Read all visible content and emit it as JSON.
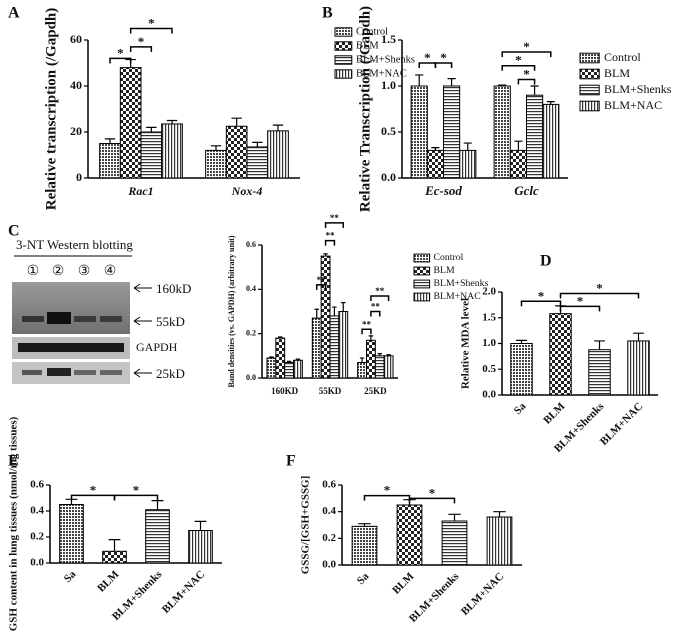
{
  "chart_data": [
    {
      "type": "grouped_bar",
      "label": "A",
      "ylabel": "Relative transcription (/Gapdh)",
      "categories": [
        "Rac1",
        "Nox-4"
      ],
      "series": [
        {
          "name": "Control",
          "color": "#444444",
          "values": [
            15,
            12
          ],
          "errors": [
            2,
            2
          ]
        },
        {
          "name": "BLM",
          "color": "#222222",
          "values": [
            48,
            22.5
          ],
          "errors": [
            3.5,
            3.5
          ]
        },
        {
          "name": "BLM+Shenks",
          "color": "#333333",
          "values": [
            20,
            13.5
          ],
          "errors": [
            2,
            2
          ]
        },
        {
          "name": "BLM+NAC",
          "color": "#333333",
          "values": [
            23.5,
            20.5
          ],
          "errors": [
            1.5,
            2.5
          ]
        }
      ],
      "ylim": [
        0,
        60
      ],
      "yticks": [
        0,
        20,
        40,
        60
      ],
      "legend": "right",
      "annotations": [
        "*",
        "*",
        "*"
      ]
    },
    {
      "type": "grouped_bar",
      "label": "B",
      "ylabel": "Relative Transcription (/Gapdh)",
      "categories": [
        "Ec-sod",
        "Gclc"
      ],
      "series": [
        {
          "name": "Control",
          "color": "#444444",
          "values": [
            1.0,
            1.0
          ],
          "errors": [
            0.12,
            0.01
          ]
        },
        {
          "name": "BLM",
          "color": "#222222",
          "values": [
            0.3,
            0.3
          ],
          "errors": [
            0.03,
            0.1
          ]
        },
        {
          "name": "BLM+Shenks",
          "color": "#333333",
          "values": [
            1.0,
            0.9
          ],
          "errors": [
            0.08,
            0.1
          ]
        },
        {
          "name": "BLM+NAC",
          "color": "#333333",
          "values": [
            0.3,
            0.8
          ],
          "errors": [
            0.08,
            0.03
          ]
        }
      ],
      "ylim": [
        0,
        1.5
      ],
      "yticks": [
        {
          "value": 0,
          "label": "0.0"
        },
        0.5,
        {
          "value": 1,
          "label": "1.0"
        },
        1.5
      ],
      "legend": "right",
      "annotations": [
        "*",
        "*",
        "*",
        "*",
        "*"
      ]
    },
    {
      "type": "grouped_bar",
      "label": "C",
      "ylabel": "Band densities (vs. GAPDH) (arbitrary unit)",
      "categories": [
        "160KD",
        "55KD",
        "25KD"
      ],
      "series": [
        {
          "name": "Control",
          "color": "#444444",
          "values": [
            0.09,
            0.27,
            0.07
          ],
          "errors": [
            0.005,
            0.04,
            0.02
          ]
        },
        {
          "name": "BLM",
          "color": "#222222",
          "values": [
            0.18,
            0.55,
            0.17
          ],
          "errors": [
            0.005,
            0.01,
            0.02
          ]
        },
        {
          "name": "BLM+Shenks",
          "color": "#333333",
          "values": [
            0.07,
            0.28,
            0.1
          ],
          "errors": [
            0.005,
            0.04,
            0.01
          ]
        },
        {
          "name": "BLM+NAC",
          "color": "#333333",
          "values": [
            0.08,
            0.3,
            0.1
          ],
          "errors": [
            0.005,
            0.04,
            0.005
          ]
        }
      ],
      "ylim": [
        0,
        0.6
      ],
      "yticks": [
        {
          "value": 0,
          "label": "0.0"
        },
        0.2,
        0.4,
        0.6
      ],
      "legend": "right",
      "annotations": [
        "**",
        "**",
        "**",
        "**",
        "**",
        "**"
      ]
    },
    {
      "type": "bar",
      "label": "D",
      "ylabel": "Relative MDA level",
      "categories": [
        "Sa",
        "BLM",
        "BLM+Shenks",
        "BLM+NAC"
      ],
      "values": [
        1.0,
        1.58,
        0.88,
        1.05
      ],
      "errors": [
        0.06,
        0.15,
        0.17,
        0.15
      ],
      "colors": [
        "#444444",
        "#222222",
        "#333333",
        "#333333"
      ],
      "ylim": [
        0,
        2
      ],
      "yticks": [
        {
          "value": 0,
          "label": "0.0"
        },
        0.5,
        {
          "value": 1,
          "label": "1.0"
        },
        1.5,
        {
          "value": 2,
          "label": "2.0"
        }
      ],
      "annotations": [
        "*",
        "*",
        "*"
      ]
    },
    {
      "type": "bar",
      "label": "E",
      "ylabel": "GSH content in lung tissues (nmol/mg tissues)",
      "categories": [
        "Sa",
        "BLM",
        "BLM+Shenks",
        "BLM+NAC"
      ],
      "values": [
        0.45,
        0.09,
        0.41,
        0.25
      ],
      "errors": [
        0.04,
        0.09,
        0.07,
        0.07
      ],
      "colors": [
        "#444444",
        "#222222",
        "#333333",
        "#333333"
      ],
      "ylim": [
        0,
        0.6
      ],
      "yticks": [
        {
          "value": 0,
          "label": "0.0"
        },
        0.2,
        0.4,
        0.6
      ],
      "annotations": [
        "*",
        "*"
      ]
    },
    {
      "type": "bar",
      "label": "F",
      "ylabel": "GSSG/[GSH+GSSG]",
      "categories": [
        "Sa",
        "BLM",
        "BLM+Shenks",
        "BLM+NAC"
      ],
      "values": [
        0.29,
        0.45,
        0.33,
        0.36
      ],
      "errors": [
        0.02,
        0.04,
        0.05,
        0.04
      ],
      "colors": [
        "#444444",
        "#222222",
        "#333333",
        "#333333"
      ],
      "ylim": [
        0,
        0.6
      ],
      "yticks": [
        {
          "value": 0,
          "label": "0.0"
        },
        0.2,
        0.4,
        0.6
      ],
      "annotations": [
        "*",
        "*"
      ]
    }
  ],
  "blot": {
    "title": "3-NT Western blotting",
    "lanes": [
      "①",
      "②",
      "③",
      "④"
    ],
    "markers": [
      "160kD",
      "55kD",
      "GAPDH",
      "25kD"
    ]
  }
}
